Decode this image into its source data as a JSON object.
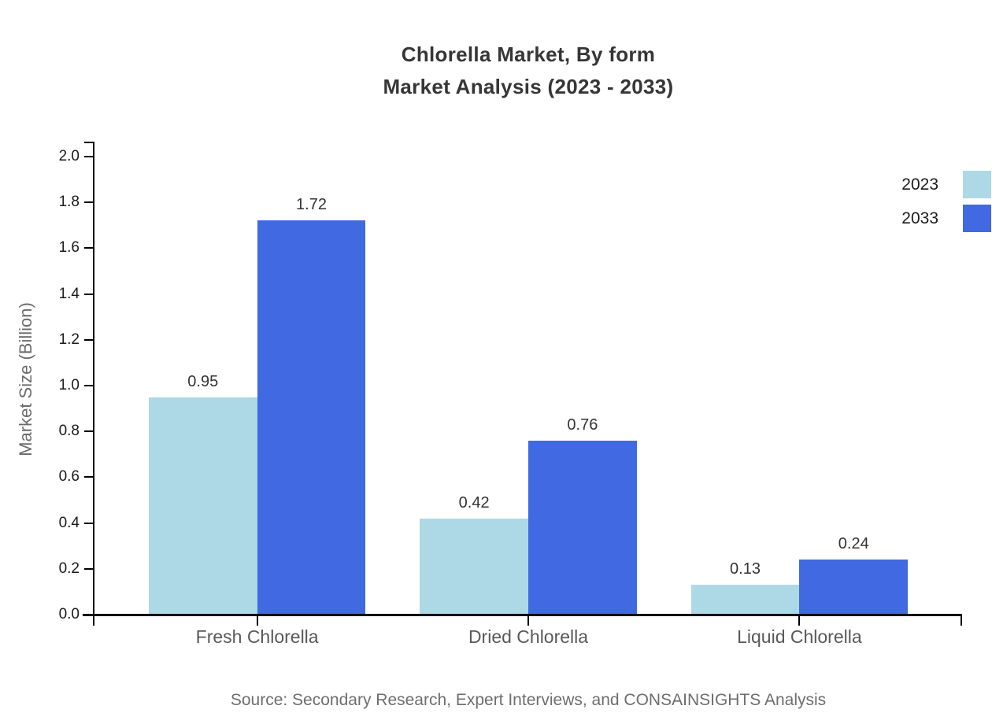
{
  "page": {
    "title_line1": "Chlorella Market, By form",
    "title_line2": "Market Analysis (2023 - 2033)",
    "source_note": "Source: Secondary Research, Expert Interviews, and CONSAINSIGHTS Analysis"
  },
  "chart_data": {
    "type": "bar",
    "title": "Chlorella Market, By form Market Analysis (2023 - 2033)",
    "categories": [
      "Fresh Chlorella",
      "Dried Chlorella",
      "Liquid Chlorella"
    ],
    "series": [
      {
        "name": "2023",
        "color": "#ADD8E6",
        "values": [
          0.95,
          0.42,
          0.13
        ]
      },
      {
        "name": "2033",
        "color": "#4169E1",
        "values": [
          1.72,
          0.76,
          0.24
        ]
      }
    ],
    "xlabel": "",
    "ylabel": "Market Size (Billion)",
    "ylim": [
      0,
      2.0
    ],
    "ytick_step": 0.2,
    "ytick_labels": [
      "0.0",
      "0.2",
      "0.4",
      "0.6",
      "0.8",
      "1.0",
      "1.2",
      "1.4",
      "1.6",
      "1.8",
      "2.0"
    ],
    "grid": false,
    "legend_position": "top-right",
    "bar_value_labels": true,
    "axis_color": "#000000",
    "value_label_decimals": 2
  }
}
